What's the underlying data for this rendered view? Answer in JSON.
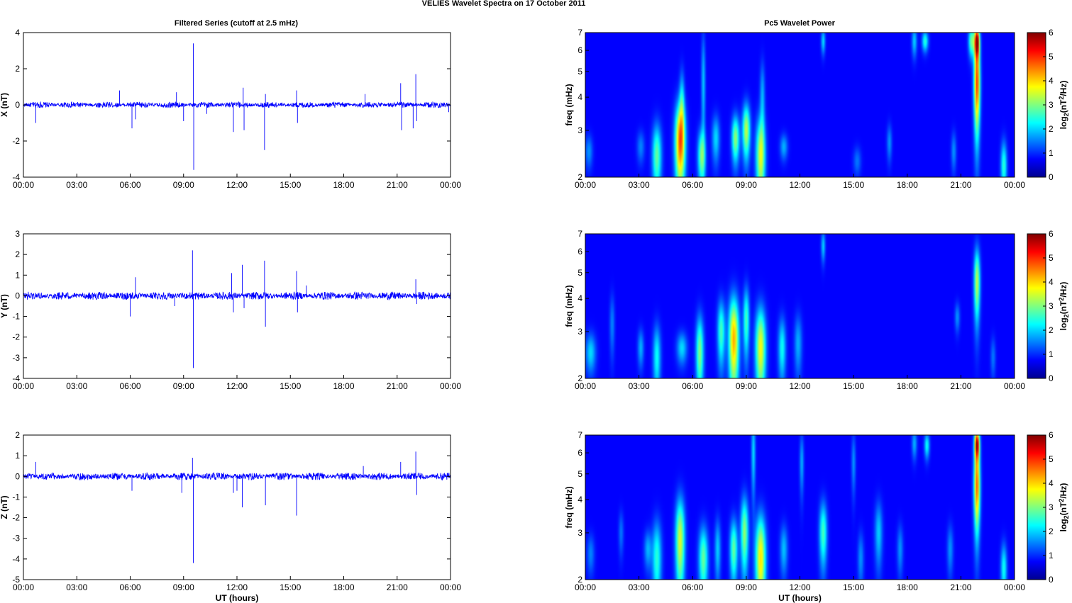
{
  "figure": {
    "title": "VELIES Wavelet Spectra on 17 October   2011",
    "left_title": "Filtered Series (cutoff at 2.5 mHz)",
    "right_title": "Pc5 Wavelet Power"
  },
  "chart_data": [
    {
      "type": "line",
      "ylabel": "X (nT)",
      "xlabel": "",
      "xlim": [
        0,
        24
      ],
      "ylim": [
        -4,
        4
      ],
      "yticks": [
        -4,
        -2,
        0,
        2,
        4
      ],
      "xticklabels": [
        "00:00",
        "03:00",
        "06:00",
        "09:00",
        "12:00",
        "15:00",
        "18:00",
        "21:00",
        "00:00"
      ],
      "series_color": "#0000ff",
      "noise_amplitude": 0.12,
      "spikes": [
        [
          0.7,
          -1.0
        ],
        [
          5.4,
          0.8
        ],
        [
          6.1,
          -1.3
        ],
        [
          6.3,
          -0.8
        ],
        [
          8.6,
          0.7
        ],
        [
          9.0,
          -0.9
        ],
        [
          9.55,
          3.4
        ],
        [
          9.57,
          -3.6
        ],
        [
          10.3,
          -0.5
        ],
        [
          11.8,
          -1.5
        ],
        [
          12.35,
          0.95
        ],
        [
          12.4,
          -1.4
        ],
        [
          13.55,
          -2.5
        ],
        [
          13.6,
          0.6
        ],
        [
          15.35,
          0.8
        ],
        [
          15.4,
          -1.0
        ],
        [
          19.2,
          0.6
        ],
        [
          21.2,
          1.2
        ],
        [
          21.25,
          -1.4
        ],
        [
          21.9,
          -1.3
        ],
        [
          22.05,
          1.7
        ],
        [
          22.1,
          -0.9
        ],
        [
          23.9,
          -0.4
        ]
      ]
    },
    {
      "type": "line",
      "ylabel": "Y (nT)",
      "xlabel": "",
      "xlim": [
        0,
        24
      ],
      "ylim": [
        -4,
        3
      ],
      "yticks": [
        -4,
        -3,
        -2,
        -1,
        0,
        1,
        2,
        3
      ],
      "xticklabels": [
        "00:00",
        "03:00",
        "06:00",
        "09:00",
        "12:00",
        "15:00",
        "18:00",
        "21:00",
        "00:00"
      ],
      "series_color": "#0000ff",
      "noise_amplitude": 0.14,
      "spikes": [
        [
          6.0,
          -1.0
        ],
        [
          6.3,
          0.9
        ],
        [
          8.5,
          -0.5
        ],
        [
          9.5,
          2.2
        ],
        [
          9.55,
          -3.5
        ],
        [
          11.7,
          1.1
        ],
        [
          11.8,
          -0.8
        ],
        [
          12.3,
          1.5
        ],
        [
          12.4,
          -0.6
        ],
        [
          13.55,
          1.7
        ],
        [
          13.6,
          -1.5
        ],
        [
          15.35,
          1.2
        ],
        [
          15.4,
          -0.8
        ],
        [
          15.9,
          0.5
        ],
        [
          22.05,
          0.8
        ],
        [
          22.1,
          -0.4
        ]
      ]
    },
    {
      "type": "line",
      "ylabel": "Z (nT)",
      "xlabel": "UT (hours)",
      "xlim": [
        0,
        24
      ],
      "ylim": [
        -5,
        2
      ],
      "yticks": [
        -5,
        -4,
        -3,
        -2,
        -1,
        0,
        1,
        2
      ],
      "xticklabels": [
        "00:00",
        "03:00",
        "06:00",
        "09:00",
        "12:00",
        "15:00",
        "18:00",
        "21:00",
        "00:00"
      ],
      "series_color": "#0000ff",
      "noise_amplitude": 0.13,
      "spikes": [
        [
          0.7,
          0.7
        ],
        [
          6.1,
          -0.7
        ],
        [
          8.9,
          -0.8
        ],
        [
          9.55,
          -4.2
        ],
        [
          9.5,
          0.9
        ],
        [
          11.8,
          -0.8
        ],
        [
          12.0,
          -0.7
        ],
        [
          12.3,
          -1.5
        ],
        [
          13.6,
          -1.4
        ],
        [
          15.35,
          -1.9
        ],
        [
          19.1,
          0.5
        ],
        [
          21.2,
          0.7
        ],
        [
          22.05,
          1.2
        ],
        [
          22.1,
          -0.9
        ]
      ]
    },
    {
      "type": "heatmap",
      "ylabel": "freq (mHz)",
      "xlabel": "",
      "xlim": [
        0,
        24
      ],
      "ylim": [
        2,
        7
      ],
      "yscale": "log",
      "yticks": [
        2,
        3,
        4,
        5,
        6,
        7
      ],
      "xticklabels": [
        "00:00",
        "03:00",
        "06:00",
        "09:00",
        "12:00",
        "15:00",
        "18:00",
        "21:00",
        "00:00"
      ],
      "colorbar": {
        "label": "log2(nT2/Hz)",
        "range": [
          0,
          6
        ],
        "ticks": [
          0,
          1,
          2,
          3,
          4,
          5,
          6
        ],
        "colormap": "jet"
      },
      "blobs": [
        [
          0.2,
          2.5,
          1.0,
          0.15,
          0.25
        ],
        [
          3.1,
          2.6,
          0.9,
          0.15,
          0.25
        ],
        [
          4.0,
          2.4,
          2.4,
          0.18,
          0.5
        ],
        [
          5.3,
          2.7,
          4.4,
          0.2,
          0.7
        ],
        [
          5.4,
          3.8,
          1.5,
          0.1,
          0.8
        ],
        [
          6.5,
          2.4,
          2.5,
          0.15,
          0.4
        ],
        [
          6.6,
          4.5,
          1.3,
          0.08,
          1.5
        ],
        [
          7.3,
          2.8,
          1.5,
          0.15,
          0.4
        ],
        [
          8.4,
          2.8,
          2.7,
          0.15,
          0.4
        ],
        [
          9.0,
          3.0,
          3.0,
          0.15,
          0.5
        ],
        [
          9.8,
          2.4,
          3.2,
          0.18,
          0.6
        ],
        [
          9.9,
          4.0,
          1.2,
          0.1,
          0.9
        ],
        [
          11.1,
          2.6,
          1.2,
          0.15,
          0.2
        ],
        [
          13.3,
          6.5,
          1.5,
          0.08,
          0.5
        ],
        [
          15.2,
          2.3,
          0.8,
          0.15,
          0.2
        ],
        [
          17.0,
          2.7,
          1.0,
          0.1,
          0.3
        ],
        [
          18.4,
          6.5,
          1.4,
          0.1,
          0.6
        ],
        [
          19.0,
          6.5,
          2.0,
          0.12,
          0.4
        ],
        [
          20.6,
          2.5,
          1.0,
          0.1,
          0.3
        ],
        [
          21.6,
          6.5,
          2.5,
          0.12,
          0.6
        ],
        [
          21.9,
          4.5,
          4.8,
          0.12,
          1.2
        ],
        [
          21.9,
          6.5,
          5.5,
          0.1,
          0.6
        ],
        [
          23.4,
          2.2,
          2.0,
          0.12,
          0.35
        ]
      ]
    },
    {
      "type": "heatmap",
      "ylabel": "freq (mHz)",
      "xlabel": "",
      "xlim": [
        0,
        24
      ],
      "ylim": [
        2,
        7
      ],
      "yscale": "log",
      "yticks": [
        2,
        3,
        4,
        5,
        6,
        7
      ],
      "xticklabels": [
        "00:00",
        "03:00",
        "06:00",
        "09:00",
        "12:00",
        "15:00",
        "18:00",
        "21:00",
        "00:00"
      ],
      "colorbar": {
        "label": "log2(nT2/Hz)",
        "range": [
          0,
          6
        ],
        "ticks": [
          0,
          1,
          2,
          3,
          4,
          5,
          6
        ],
        "colormap": "jet"
      },
      "blobs": [
        [
          0.3,
          2.5,
          1.5,
          0.2,
          0.3
        ],
        [
          1.5,
          3.2,
          0.9,
          0.1,
          0.6
        ],
        [
          3.1,
          2.6,
          1.2,
          0.12,
          0.3
        ],
        [
          4.0,
          2.4,
          1.8,
          0.15,
          0.5
        ],
        [
          5.4,
          2.6,
          1.5,
          0.2,
          0.25
        ],
        [
          6.4,
          2.5,
          2.6,
          0.15,
          0.6
        ],
        [
          7.6,
          3.0,
          2.2,
          0.15,
          0.6
        ],
        [
          8.3,
          2.8,
          4.0,
          0.2,
          0.8
        ],
        [
          9.0,
          3.3,
          2.2,
          0.12,
          0.7
        ],
        [
          9.8,
          2.6,
          3.4,
          0.2,
          0.7
        ],
        [
          11.0,
          2.6,
          1.8,
          0.15,
          0.5
        ],
        [
          11.9,
          2.7,
          1.2,
          0.15,
          0.5
        ],
        [
          13.3,
          6.3,
          1.4,
          0.08,
          0.6
        ],
        [
          20.8,
          3.4,
          1.0,
          0.1,
          0.3
        ],
        [
          21.9,
          4.6,
          3.0,
          0.12,
          1.0
        ],
        [
          22.8,
          2.4,
          0.8,
          0.1,
          0.3
        ]
      ]
    },
    {
      "type": "heatmap",
      "ylabel": "freq (mHz)",
      "xlabel": "UT (hours)",
      "xlim": [
        0,
        24
      ],
      "ylim": [
        2,
        7
      ],
      "yscale": "log",
      "yticks": [
        2,
        3,
        4,
        5,
        6,
        7
      ],
      "xticklabels": [
        "00:00",
        "03:00",
        "06:00",
        "09:00",
        "12:00",
        "15:00",
        "18:00",
        "21:00",
        "00:00"
      ],
      "colorbar": {
        "label": "log2(nT2/Hz)",
        "range": [
          0,
          6
        ],
        "ticks": [
          0,
          1,
          2,
          3,
          4,
          5,
          6
        ],
        "colormap": "jet"
      },
      "blobs": [
        [
          0.3,
          2.5,
          0.9,
          0.15,
          0.3
        ],
        [
          2.0,
          3.0,
          0.8,
          0.1,
          0.4
        ],
        [
          3.5,
          2.6,
          1.2,
          0.15,
          0.3
        ],
        [
          4.0,
          2.4,
          2.0,
          0.18,
          0.6
        ],
        [
          5.3,
          2.8,
          3.2,
          0.18,
          0.8
        ],
        [
          6.6,
          2.4,
          2.4,
          0.18,
          0.5
        ],
        [
          7.4,
          2.6,
          1.4,
          0.12,
          0.5
        ],
        [
          8.3,
          2.6,
          2.4,
          0.15,
          0.5
        ],
        [
          8.9,
          3.0,
          2.7,
          0.15,
          0.7
        ],
        [
          9.4,
          6.0,
          1.5,
          0.08,
          1.5
        ],
        [
          9.8,
          2.4,
          3.6,
          0.2,
          0.7
        ],
        [
          11.1,
          2.6,
          1.3,
          0.15,
          0.4
        ],
        [
          12.1,
          5.5,
          1.2,
          0.08,
          1.0
        ],
        [
          13.3,
          3.0,
          2.2,
          0.15,
          0.6
        ],
        [
          15.0,
          5.5,
          1.0,
          0.08,
          1.0
        ],
        [
          15.4,
          2.4,
          1.0,
          0.12,
          0.4
        ],
        [
          16.4,
          3.0,
          1.4,
          0.15,
          0.6
        ],
        [
          17.6,
          2.6,
          1.0,
          0.12,
          0.4
        ],
        [
          18.4,
          6.5,
          1.2,
          0.1,
          0.6
        ],
        [
          19.1,
          6.4,
          1.8,
          0.1,
          0.5
        ],
        [
          20.4,
          2.6,
          1.0,
          0.12,
          0.4
        ],
        [
          21.9,
          4.5,
          4.5,
          0.12,
          1.1
        ],
        [
          21.9,
          6.5,
          5.3,
          0.1,
          0.6
        ],
        [
          23.4,
          2.2,
          1.8,
          0.12,
          0.35
        ]
      ]
    }
  ]
}
